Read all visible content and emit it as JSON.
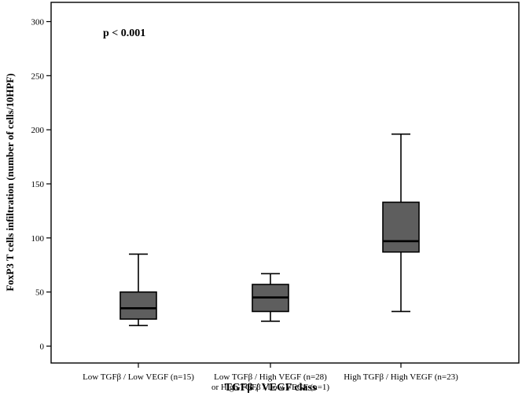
{
  "chart_data": {
    "type": "boxplot",
    "title": "",
    "xlabel": "TGFβ / VEGF class",
    "ylabel": "FoxP3 T cells infiltration (number of cells/10HPF)",
    "ylim": [
      -15,
      310
    ],
    "yticks": [
      0,
      50,
      100,
      150,
      200,
      250,
      300
    ],
    "grid": false,
    "legend": "none",
    "annotation": "p < 0.001",
    "box_color": "#5e5e5e",
    "categories": [
      {
        "lines": [
          "Low TGFβ / Low VEGF (n=15)"
        ]
      },
      {
        "lines": [
          "Low TGFβ / High VEGF (n=28)",
          "or High TGFβ / Low VEGF (n=1)"
        ]
      },
      {
        "lines": [
          "High TGFβ / High VEGF (n=23)"
        ]
      }
    ],
    "boxes": [
      {
        "min": 19,
        "q1": 25,
        "median": 35,
        "q3": 50,
        "max": 85
      },
      {
        "min": 23,
        "q1": 32,
        "median": 45,
        "q3": 57,
        "max": 67
      },
      {
        "min": 32,
        "q1": 87,
        "median": 97,
        "q3": 133,
        "max": 196
      }
    ]
  }
}
